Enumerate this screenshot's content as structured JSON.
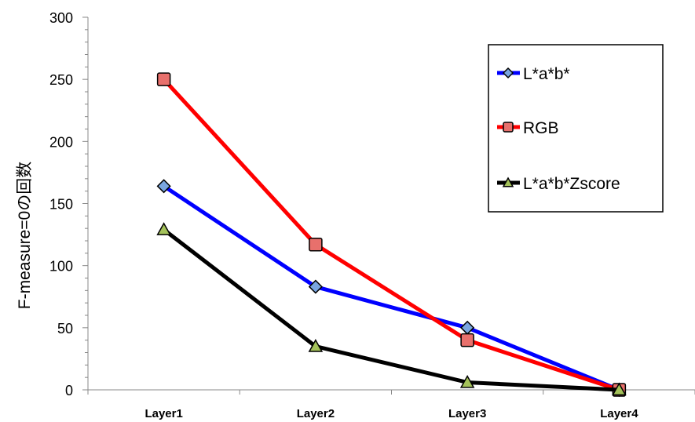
{
  "chart_data": {
    "type": "line",
    "title": "",
    "xlabel": "",
    "ylabel": "F-measure=0の回数",
    "ylim": [
      0,
      300
    ],
    "ytick_step": 50,
    "categories": [
      "Layer1",
      "Layer2",
      "Layer3",
      "Layer4"
    ],
    "legend_position": "top-right",
    "grid": false,
    "series": [
      {
        "name": "L*a*b*",
        "values": [
          164,
          83,
          50,
          0
        ],
        "line_color": "#0000ff",
        "marker": "diamond",
        "marker_color": "#7aa6e0"
      },
      {
        "name": "RGB",
        "values": [
          250,
          117,
          40,
          0
        ],
        "line_color": "#ff0000",
        "marker": "square",
        "marker_color": "#e8706c"
      },
      {
        "name": "L*a*b*Zscore",
        "values": [
          129,
          35,
          6,
          0
        ],
        "line_color": "#000000",
        "marker": "triangle",
        "marker_color": "#a4c25a"
      }
    ]
  }
}
